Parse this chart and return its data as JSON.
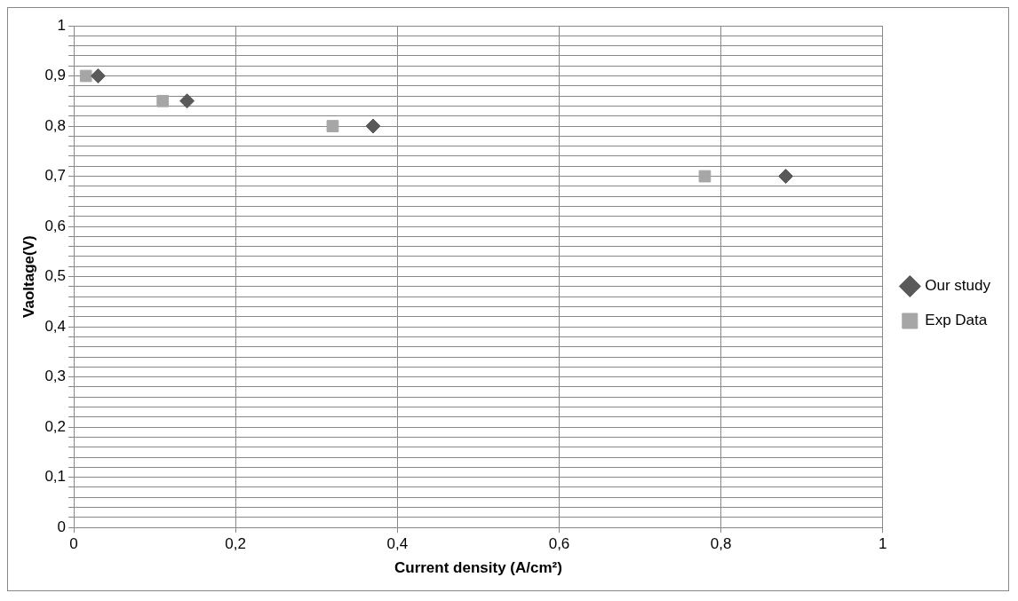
{
  "chart_data": {
    "type": "scatter",
    "xlabel": "Current density (A/cm²)",
    "ylabel": "Vaoltage(V)",
    "series": [
      {
        "name": "Our study",
        "color": "#595959",
        "marker": "diamond",
        "x": [
          0.03,
          0.14,
          0.37,
          0.88
        ],
        "values": [
          0.9,
          0.85,
          0.8,
          0.7
        ]
      },
      {
        "name": "Exp Data",
        "color": "#a6a6a6",
        "marker": "square",
        "x": [
          0.015,
          0.11,
          0.32,
          0.78
        ],
        "values": [
          0.9,
          0.85,
          0.8,
          0.7
        ]
      }
    ],
    "xlim": [
      0,
      1
    ],
    "xticks": [
      0,
      {
        "value": 0.2,
        "label": "0,2"
      },
      {
        "value": 0.4,
        "label": "0,4"
      },
      {
        "value": 0.6,
        "label": "0,6"
      },
      {
        "value": 0.8,
        "label": "0,8"
      },
      1
    ],
    "ylim": [
      0,
      1
    ],
    "yticks": [
      0,
      {
        "value": 0.02,
        "label": null
      },
      {
        "value": 0.04,
        "label": null
      },
      {
        "value": 0.06,
        "label": null
      },
      {
        "value": 0.08,
        "label": null
      },
      {
        "value": 0.1,
        "label": "0,1"
      },
      {
        "value": 0.12,
        "label": null
      },
      {
        "value": 0.14,
        "label": null
      },
      {
        "value": 0.16,
        "label": null
      },
      {
        "value": 0.18,
        "label": null
      },
      {
        "value": 0.2,
        "label": "0,2"
      },
      {
        "value": 0.22,
        "label": null
      },
      {
        "value": 0.24,
        "label": null
      },
      {
        "value": 0.26,
        "label": null
      },
      {
        "value": 0.28,
        "label": null
      },
      {
        "value": 0.3,
        "label": "0,3"
      },
      {
        "value": 0.32,
        "label": null
      },
      {
        "value": 0.34,
        "label": null
      },
      {
        "value": 0.36,
        "label": null
      },
      {
        "value": 0.38,
        "label": null
      },
      {
        "value": 0.4,
        "label": "0,4"
      },
      {
        "value": 0.42,
        "label": null
      },
      {
        "value": 0.44,
        "label": null
      },
      {
        "value": 0.46,
        "label": null
      },
      {
        "value": 0.48,
        "label": null
      },
      {
        "value": 0.5,
        "label": "0,5"
      },
      {
        "value": 0.52,
        "label": null
      },
      {
        "value": 0.54,
        "label": null
      },
      {
        "value": 0.56,
        "label": null
      },
      {
        "value": 0.58,
        "label": null
      },
      {
        "value": 0.6,
        "label": "0,6"
      },
      {
        "value": 0.62,
        "label": null
      },
      {
        "value": 0.64,
        "label": null
      },
      {
        "value": 0.66,
        "label": null
      },
      {
        "value": 0.68,
        "label": null
      },
      {
        "value": 0.7,
        "label": "0,7"
      },
      {
        "value": 0.72,
        "label": null
      },
      {
        "value": 0.74,
        "label": null
      },
      {
        "value": 0.76,
        "label": null
      },
      {
        "value": 0.78,
        "label": null
      },
      {
        "value": 0.8,
        "label": "0,8"
      },
      {
        "value": 0.82,
        "label": null
      },
      {
        "value": 0.84,
        "label": null
      },
      {
        "value": 0.86,
        "label": null
      },
      {
        "value": 0.88,
        "label": null
      },
      {
        "value": 0.9,
        "label": "0,9"
      },
      {
        "value": 0.92,
        "label": null
      },
      {
        "value": 0.94,
        "label": null
      },
      {
        "value": 0.96,
        "label": null
      },
      {
        "value": 0.98,
        "label": null
      },
      1
    ],
    "grid": true,
    "legend": "right"
  }
}
